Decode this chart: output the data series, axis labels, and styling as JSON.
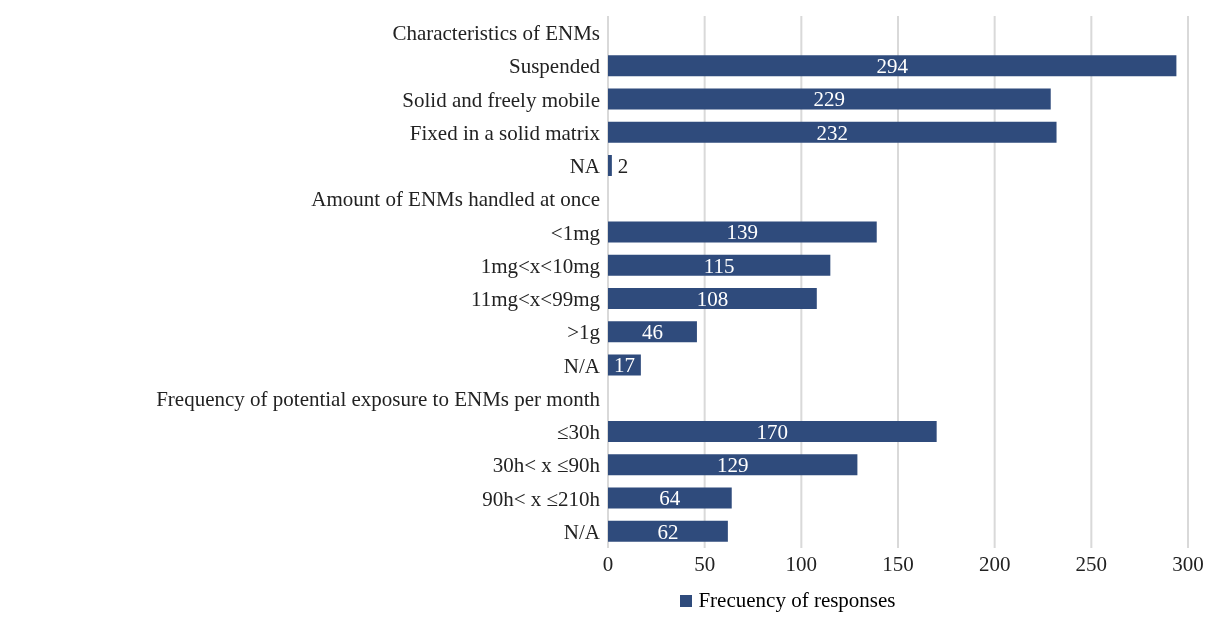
{
  "chart_data": {
    "type": "bar",
    "orientation": "horizontal",
    "categories": [
      "Characteristics of ENMs",
      "Suspended",
      "Solid and freely mobile",
      "Fixed in a solid matrix",
      "NA",
      "Amount of ENMs handled at once",
      "<1mg",
      "1mg<x<10mg",
      "11mg<x<99mg",
      ">1g",
      "N/A",
      "Frequency of potential exposure to ENMs per month",
      "≤30h",
      "30h< x ≤90h",
      "90h< x ≤210h",
      "N/A"
    ],
    "series": [
      {
        "name": "Frecuency of responses",
        "color": "#2f4b7c",
        "values": [
          null,
          294,
          229,
          232,
          2,
          null,
          139,
          115,
          108,
          46,
          17,
          null,
          170,
          129,
          64,
          62
        ]
      }
    ],
    "xlim": [
      0,
      300
    ],
    "xticks": [
      0,
      50,
      100,
      150,
      200,
      250,
      300
    ],
    "grid": "x",
    "legend": "bottom",
    "data_labels": true
  }
}
